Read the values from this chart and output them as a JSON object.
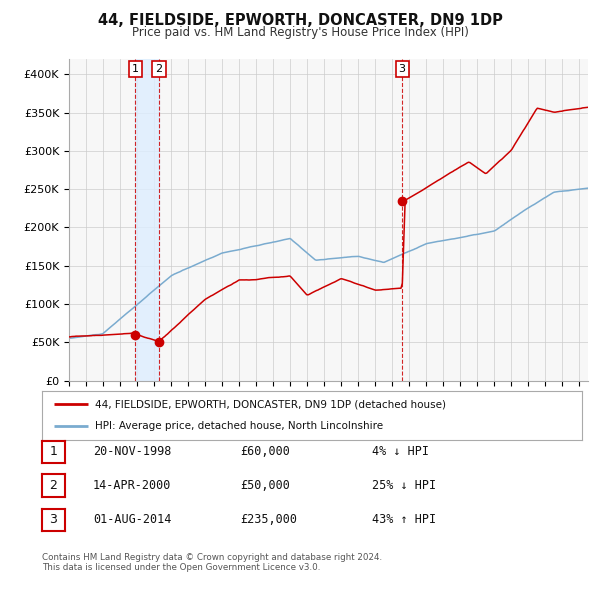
{
  "title": "44, FIELDSIDE, EPWORTH, DONCASTER, DN9 1DP",
  "subtitle": "Price paid vs. HM Land Registry's House Price Index (HPI)",
  "legend_label_red": "44, FIELDSIDE, EPWORTH, DONCASTER, DN9 1DP (detached house)",
  "legend_label_blue": "HPI: Average price, detached house, North Lincolnshire",
  "footnote1": "Contains HM Land Registry data © Crown copyright and database right 2024.",
  "footnote2": "This data is licensed under the Open Government Licence v3.0.",
  "transactions": [
    {
      "num": 1,
      "date": "20-NOV-1998",
      "price": "£60,000",
      "hpi_rel": "4% ↓ HPI",
      "year": 1998.89,
      "price_val": 60000
    },
    {
      "num": 2,
      "date": "14-APR-2000",
      "price": "£50,000",
      "hpi_rel": "25% ↓ HPI",
      "year": 2000.29,
      "price_val": 50000
    },
    {
      "num": 3,
      "date": "01-AUG-2014",
      "price": "£235,000",
      "hpi_rel": "43% ↑ HPI",
      "year": 2014.58,
      "price_val": 235000
    }
  ],
  "red_line_color": "#cc0000",
  "blue_line_color": "#7aabcf",
  "shade_color": "#ddeeff",
  "vline_color": "#cc0000",
  "grid_color": "#cccccc",
  "background_color": "#ffffff",
  "plot_bg_color": "#f7f7f7",
  "ylim": [
    0,
    420000
  ],
  "xlim_start": 1995.0,
  "xlim_end": 2025.5,
  "yticks": [
    0,
    50000,
    100000,
    150000,
    200000,
    250000,
    300000,
    350000,
    400000
  ],
  "ytick_labels": [
    "£0",
    "£50K",
    "£100K",
    "£150K",
    "£200K",
    "£250K",
    "£300K",
    "£350K",
    "£400K"
  ],
  "xticks": [
    1995,
    1996,
    1997,
    1998,
    1999,
    2000,
    2001,
    2002,
    2003,
    2004,
    2005,
    2006,
    2007,
    2008,
    2009,
    2010,
    2011,
    2012,
    2013,
    2014,
    2015,
    2016,
    2017,
    2018,
    2019,
    2020,
    2021,
    2022,
    2023,
    2024,
    2025
  ]
}
